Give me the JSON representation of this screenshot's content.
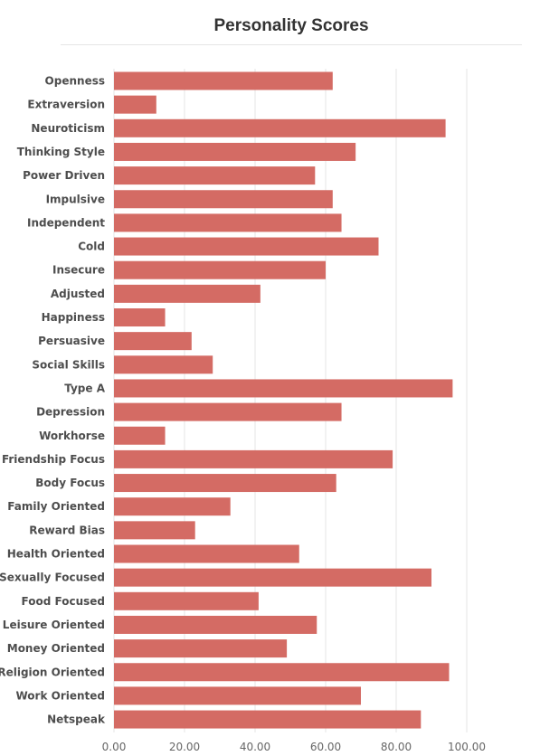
{
  "chart_data": {
    "type": "bar",
    "orientation": "horizontal",
    "title": "Personality Scores",
    "xlabel": "",
    "ylabel": "",
    "xlim": [
      0,
      100
    ],
    "grid": true,
    "legend": "none",
    "bar_color": "#d46b64",
    "grid_color": "#e6e6e6",
    "x_ticks": [
      "0.00",
      "20.00",
      "40.00",
      "60.00",
      "80.00",
      "100.00"
    ],
    "x_tick_values": [
      0,
      20,
      40,
      60,
      80,
      100
    ],
    "categories": [
      "Openness",
      "Extraversion",
      "Neuroticism",
      "Thinking Style",
      "Power Driven",
      "Impulsive",
      "Independent",
      "Cold",
      "Insecure",
      "Adjusted",
      "Happiness",
      "Persuasive",
      "Social Skills",
      "Type A",
      "Depression",
      "Workhorse",
      "Friendship Focus",
      "Body Focus",
      "Family Oriented",
      "Reward Bias",
      "Health Oriented",
      "Sexually Focused",
      "Food Focused",
      "Leisure Oriented",
      "Money Oriented",
      "Religion Oriented",
      "Work Oriented",
      "Netspeak"
    ],
    "values": [
      62,
      12,
      94,
      68.5,
      57,
      62,
      64.5,
      75,
      60,
      41.5,
      14.5,
      22,
      28,
      96,
      64.5,
      14.5,
      79,
      63,
      33,
      23,
      52.5,
      90,
      41,
      57.5,
      49,
      95,
      70,
      87
    ]
  }
}
